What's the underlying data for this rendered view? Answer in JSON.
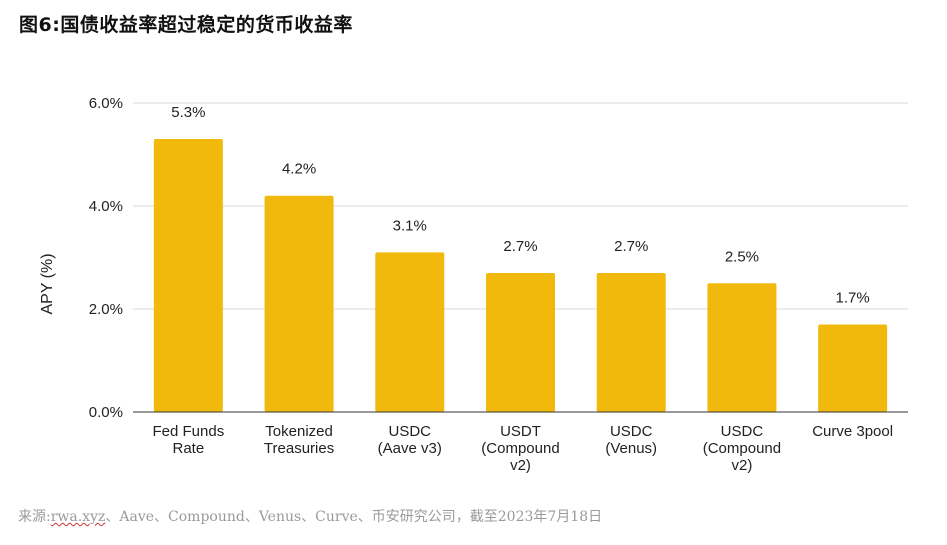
{
  "header": {
    "title": "图6:国债收益率超过稳定的货币收益率"
  },
  "source": {
    "prefix": "来源:",
    "link": "rwa.xyz",
    "rest": "、Aave、Compound、Venus、Curve、币安研究公司，截至2023年7月18日"
  },
  "chart_data": {
    "type": "bar",
    "title": "",
    "xlabel": "",
    "ylabel": "APY (%)",
    "ylim": [
      0,
      6
    ],
    "yticks": [
      {
        "value": 0,
        "label": "0.0%"
      },
      {
        "value": 2,
        "label": "2.0%"
      },
      {
        "value": 4,
        "label": "4.0%"
      },
      {
        "value": 6,
        "label": "6.0%"
      }
    ],
    "grid": true,
    "color": "#F0B90B",
    "categories": [
      [
        "Fed Funds",
        "Rate"
      ],
      [
        "Tokenized",
        "Treasuries"
      ],
      [
        "USDC",
        "(Aave v3)"
      ],
      [
        "USDT",
        "(Compound",
        "v2)"
      ],
      [
        "USDC",
        "(Venus)"
      ],
      [
        "USDC",
        "(Compound",
        "v2)"
      ],
      [
        "Curve 3pool"
      ]
    ],
    "values": [
      5.3,
      4.2,
      3.1,
      2.7,
      2.7,
      2.5,
      1.7
    ],
    "data_labels": [
      "5.3%",
      "4.2%",
      "3.1%",
      "2.7%",
      "2.7%",
      "2.5%",
      "1.7%"
    ]
  }
}
